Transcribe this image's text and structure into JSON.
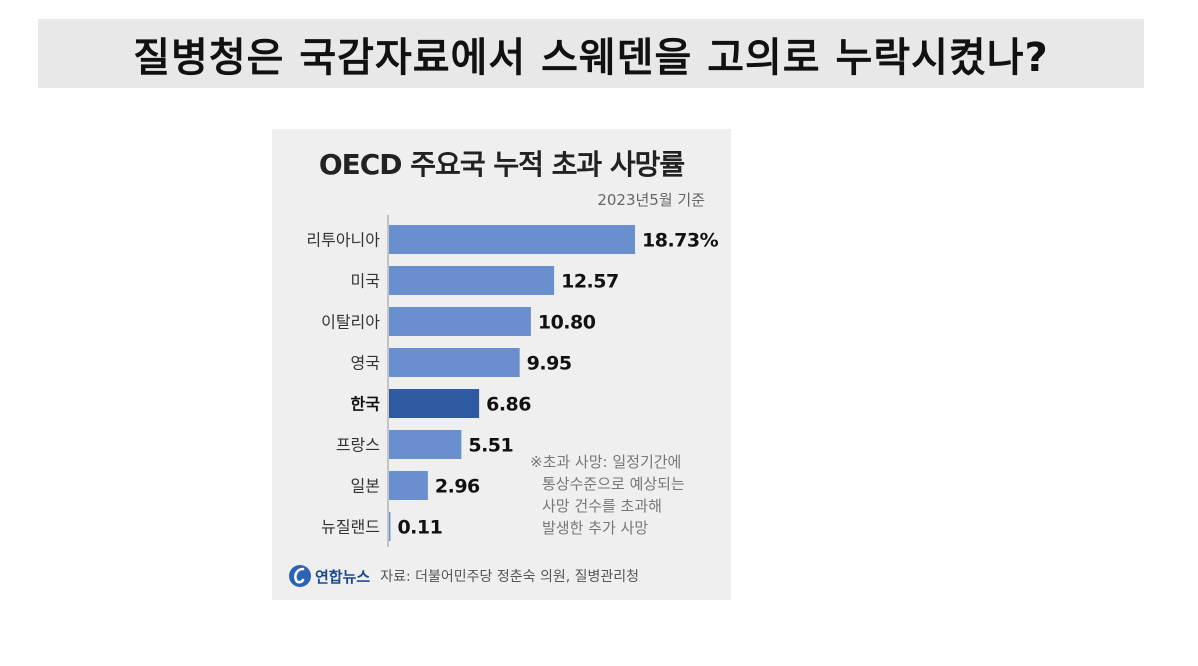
{
  "headline": "질병청은 국감자료에서 스웨덴을 고의로 누락시켰나?",
  "chart_data": {
    "type": "bar",
    "orientation": "horizontal",
    "title": "OECD 주요국 누적 초과 사망률",
    "subtitle": "2023년5월 기준",
    "categories": [
      "리투아니아",
      "미국",
      "이탈리아",
      "영국",
      "한국",
      "프랑스",
      "일본",
      "뉴질랜드"
    ],
    "values": [
      18.73,
      12.57,
      10.8,
      9.95,
      6.86,
      5.51,
      2.96,
      0.11
    ],
    "value_labels": [
      "18.73%",
      "12.57",
      "10.80",
      "9.95",
      "6.86",
      "5.51",
      "2.96",
      "0.11"
    ],
    "highlight_category": "한국",
    "xlim": [
      0,
      18.73
    ],
    "colors": {
      "bar": "#6a8fcf",
      "highlight": "#2d5aa0",
      "background": "#efefef"
    },
    "note_lines": [
      "※초과 사망: 일정기간에",
      "통상수준으로 예상되는",
      "사망 건수를 초과해",
      "발생한 추가 사망"
    ],
    "logo": "연합뉴스",
    "source": "자료: 더불어민주당 정춘숙 의원, 질병관리청"
  }
}
